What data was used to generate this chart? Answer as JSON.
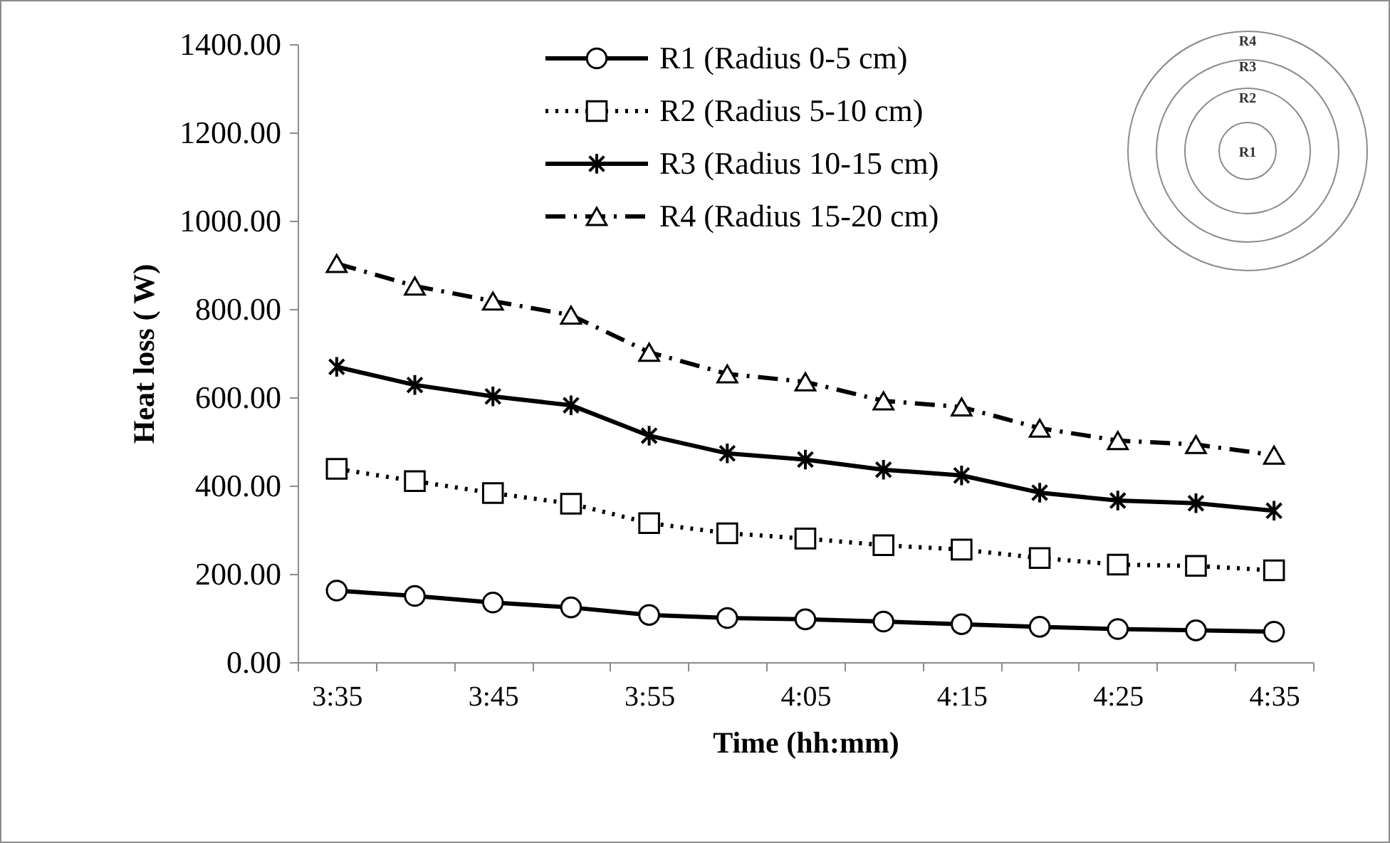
{
  "chart_data": {
    "type": "line",
    "xlabel": "Time (hh:mm)",
    "ylabel": "Heat loss ( W)",
    "categories": [
      "3:35",
      null,
      "3:45",
      null,
      "3:55",
      null,
      "4:05",
      null,
      "4:15",
      null,
      "4:25",
      null,
      "4:35"
    ],
    "series": [
      {
        "name": "R1 (Radius 0-5 cm)",
        "color": "#000000",
        "marker": "circle",
        "line_style": "solid",
        "values": [
          162,
          150,
          135,
          124,
          107,
          100,
          97,
          92,
          86,
          80,
          75,
          72,
          69
        ]
      },
      {
        "name": "R2 (Radius 5-10 cm)",
        "color": "#000000",
        "marker": "square",
        "line_style": "dotted",
        "values": [
          438,
          410,
          383,
          359,
          315,
          292,
          280,
          265,
          255,
          236,
          221,
          218,
          208
        ]
      },
      {
        "name": "R3 (Radius 10-15 cm)",
        "color": "#000000",
        "marker": "cross",
        "line_style": "solid",
        "values": [
          669,
          628,
          602,
          582,
          513,
          473,
          459,
          436,
          423,
          384,
          366,
          360,
          343
        ]
      },
      {
        "name": "R4 (Radius 15-20 cm)",
        "color": "#000000",
        "marker": "triangle",
        "line_style": "dashed",
        "values": [
          903,
          852,
          818,
          786,
          702,
          653,
          635,
          592,
          578,
          530,
          502,
          493,
          469
        ]
      }
    ],
    "ylim": [
      0,
      1400
    ],
    "yticks": [
      {
        "value": 0,
        "label": "0.00"
      },
      {
        "value": 200,
        "label": "200.00"
      },
      {
        "value": 400,
        "label": "400.00"
      },
      {
        "value": 600,
        "label": "600.00"
      },
      {
        "value": 800,
        "label": "800.00"
      },
      {
        "value": 1000,
        "label": "1000.00"
      },
      {
        "value": 1200,
        "label": "1200.00"
      },
      {
        "value": 1400,
        "label": "1400.00"
      }
    ],
    "grid": false,
    "legend": "top",
    "annotations": [
      "R4",
      "R3",
      "R2",
      "R1"
    ]
  }
}
